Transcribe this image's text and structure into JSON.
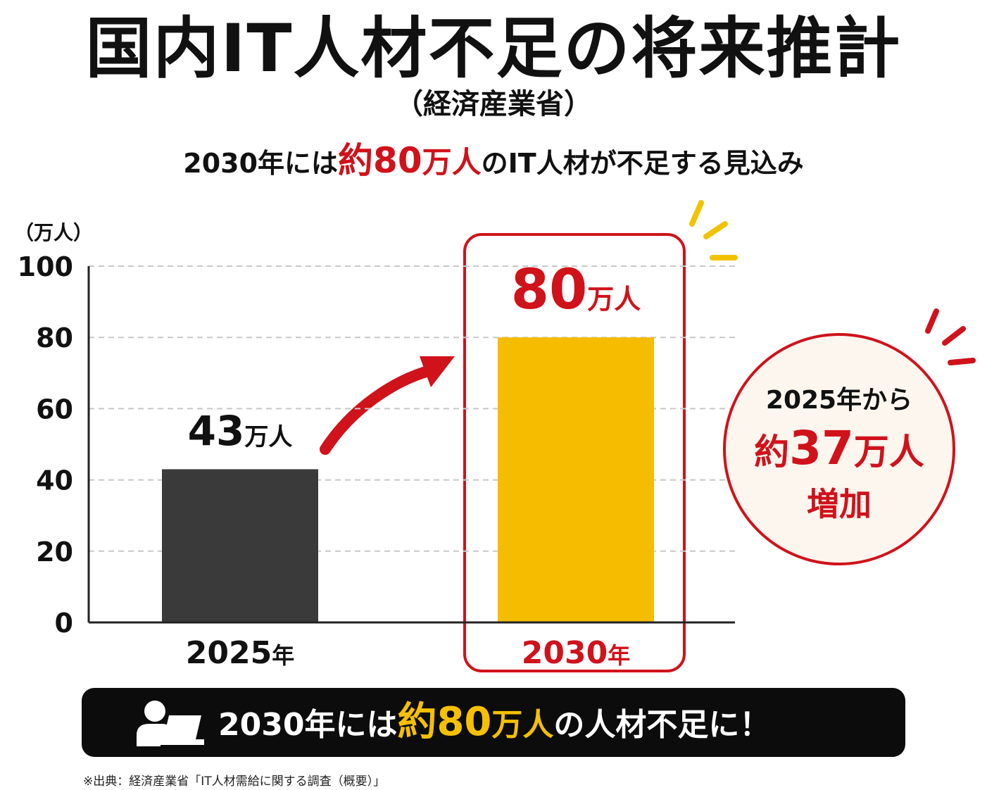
{
  "title": "国内IT人材不足の将来推計",
  "subtitle": "（経済産業省）",
  "headline": {
    "prefix": "2030年には",
    "highlight_approx": "約",
    "highlight_number": "80",
    "highlight_unit": "万人",
    "suffix": "のIT人材が不足する見込み"
  },
  "chart_data": {
    "type": "bar",
    "categories": [
      "2025年",
      "2030年"
    ],
    "values": [
      43,
      80
    ],
    "value_labels": [
      {
        "number": "43",
        "unit": "万人"
      },
      {
        "number": "80",
        "unit": "万人"
      }
    ],
    "ylabel": "（万人）",
    "ylim": [
      0,
      100
    ],
    "yticks": [
      "0",
      "20",
      "40",
      "60",
      "80",
      "100"
    ],
    "grid": true,
    "bar_colors": [
      "#3a3a3a",
      "#f5bc00"
    ],
    "category_label_colors": [
      "#111111",
      "#d0121b"
    ],
    "highlight_color": "#d0121b"
  },
  "callout": {
    "line1": "2025年から",
    "line2_approx": "約",
    "line2_number": "37",
    "line2_unit": "万人",
    "line3": "増加"
  },
  "banner": {
    "prefix": "2030年には",
    "highlight_approx": "約",
    "highlight_number": "80",
    "highlight_unit": "万人",
    "suffix": "の人材不足に！",
    "icon": "person-at-laptop-icon"
  },
  "footnote": "※出典：経済産業省「IT人材需給に関する調査（概要）」",
  "colors": {
    "accent_red": "#d0121b",
    "accent_yellow": "#f5bc00",
    "banner_bg": "#0c0c0c"
  }
}
